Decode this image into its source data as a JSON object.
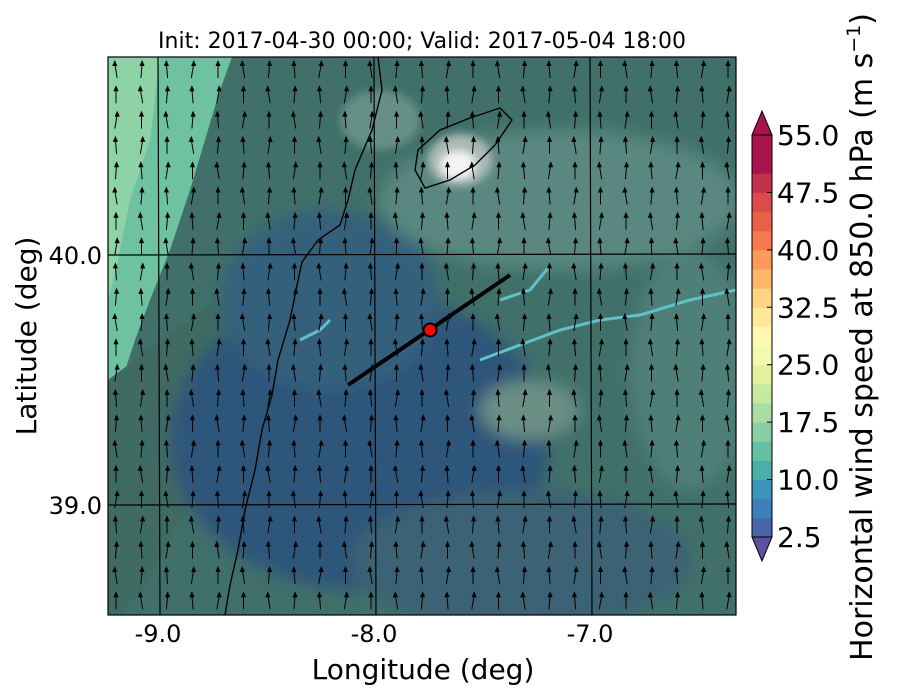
{
  "title": "Init: 2017-04-30 00:00; Valid: 2017-05-04 18:00",
  "xlabel": "Longitude (deg)",
  "ylabel": "Latitude (deg)",
  "colorbar": {
    "label_main": "Horizontal wind speed at 850.0 hPa (m s",
    "label_sup": "−1",
    "label_end": ")",
    "min": 2.5,
    "max": 55.0,
    "step": 2.5,
    "tick_values": [
      2.5,
      10.0,
      17.5,
      25.0,
      32.5,
      40.0,
      47.5,
      55.0
    ],
    "tick_labels": [
      "2.5",
      "10.0",
      "17.5",
      "25.0",
      "32.5",
      "40.0",
      "47.5",
      "55.0"
    ],
    "colors": [
      "#5e4fa2",
      "#4a64ab",
      "#3c7fb9",
      "#3b95b8",
      "#4aaeab",
      "#66c1a4",
      "#89cfa5",
      "#aadda4",
      "#c7e89f",
      "#e1f29a",
      "#f2faae",
      "#fef8b1",
      "#fee99a",
      "#fed382",
      "#fdb768",
      "#fb9a5a",
      "#f67a4b",
      "#ea5f47",
      "#dc4b4b",
      "#c4314b",
      "#a9134b"
    ]
  },
  "map": {
    "lon_range": [
      -9.25,
      -6.35
    ],
    "lat_range": [
      38.5,
      40.75
    ],
    "x_ticks": [
      -9.0,
      -8.0,
      -7.0
    ],
    "x_tick_labels": [
      "-9.0",
      "-8.0",
      "-7.0"
    ],
    "y_ticks": [
      39.0,
      40.0
    ],
    "y_tick_labels": [
      "39.0",
      "40.0"
    ],
    "gridlines": true,
    "transect_line": {
      "start": [
        -8.12,
        39.48
      ],
      "end": [
        -7.37,
        39.92
      ]
    },
    "marker": {
      "lon": -7.74,
      "lat": 39.7,
      "color": "#ff0000"
    },
    "wind_direction": "southerly"
  }
}
